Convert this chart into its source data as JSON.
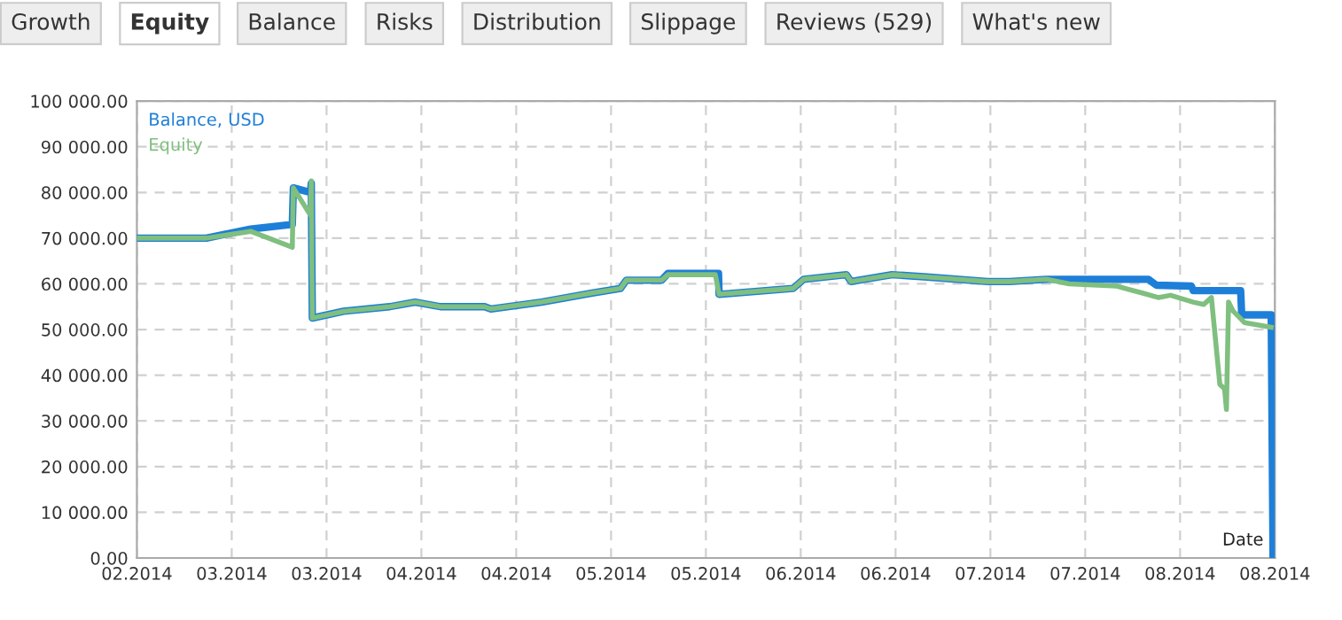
{
  "chart_data": {
    "type": "line",
    "xlabel": "Date",
    "annotations": [
      "Growth",
      "Equity",
      "Balance",
      "Risks",
      "Distribution",
      "Slippage",
      "Reviews (529)",
      "What's new"
    ],
    "xlim": [
      "2014-02-20",
      "2014-08-19"
    ],
    "ylim": [
      0,
      100000
    ],
    "xticks": [
      {
        "value": "2014-02-20",
        "label": "02.2014"
      },
      {
        "value": "2014-03-07",
        "label": "03.2014"
      },
      {
        "value": "2014-03-22",
        "label": "03.2014"
      },
      {
        "value": "2014-04-06",
        "label": "04.2014"
      },
      {
        "value": "2014-04-21",
        "label": "04.2014"
      },
      {
        "value": "2014-05-06",
        "label": "05.2014"
      },
      {
        "value": "2014-05-21",
        "label": "05.2014"
      },
      {
        "value": "2014-06-05",
        "label": "06.2014"
      },
      {
        "value": "2014-06-20",
        "label": "06.2014"
      },
      {
        "value": "2014-07-05",
        "label": "07.2014"
      },
      {
        "value": "2014-07-20",
        "label": "07.2014"
      },
      {
        "value": "2014-08-04",
        "label": "08.2014"
      },
      {
        "value": "2014-08-19",
        "label": "08.2014"
      }
    ],
    "yticks": [
      {
        "value": 0,
        "label": "0.00"
      },
      {
        "value": 10000,
        "label": "10 000.00"
      },
      {
        "value": 20000,
        "label": "20 000.00"
      },
      {
        "value": 30000,
        "label": "30 000.00"
      },
      {
        "value": 40000,
        "label": "40 000.00"
      },
      {
        "value": 50000,
        "label": "50 000.00"
      },
      {
        "value": 60000,
        "label": "60 000.00"
      },
      {
        "value": 70000,
        "label": "70 000.00"
      },
      {
        "value": 80000,
        "label": "80 000.00"
      },
      {
        "value": 90000,
        "label": "90 000.00"
      },
      {
        "value": 100000,
        "label": "100 000.00"
      }
    ],
    "grid": true,
    "legend": "top left",
    "marker": "none",
    "line_style": "solid",
    "series": [
      {
        "name": "Balance, USD",
        "color": "#1e7fd8",
        "x": [
          "2014-02-20",
          "2014-03-03",
          "2014-03-10",
          "2014-03-16T14:00",
          "2014-03-16T18:00",
          "2014-03-19T11:00",
          "2014-03-19T14:00",
          "2014-03-19T18:00",
          "2014-03-24T17:00",
          "2014-04-01",
          "2014-04-05",
          "2014-04-09",
          "2014-04-16",
          "2014-04-17",
          "2014-04-25",
          "2014-05-03",
          "2014-05-07T12:00",
          "2014-05-08T10:00",
          "2014-05-14",
          "2014-05-15",
          "2014-05-23",
          "2014-05-23T02:00",
          "2014-06-03T19:00",
          "2014-06-05T11:00",
          "2014-06-12T05:00",
          "2014-06-12T23:00",
          "2014-06-19T10:00",
          "2014-06-25",
          "2014-07-04T13:00",
          "2014-07-08",
          "2014-07-13T20:00",
          "2014-07-30",
          "2014-07-31T06:00",
          "2014-08-05T19:00",
          "2014-08-06T02:00",
          "2014-08-13T14:00",
          "2014-08-13T18:00",
          "2014-08-18T10:00",
          "2014-08-18T17:00"
        ],
        "values": [
          70000,
          70000,
          72000,
          73000,
          81000,
          80000,
          82000,
          52500,
          54000,
          55000,
          56000,
          55000,
          55000,
          54500,
          56000,
          58000,
          59000,
          60800,
          60800,
          62300,
          62300,
          57700,
          59000,
          61000,
          62000,
          60500,
          62000,
          61500,
          60500,
          60500,
          61000,
          61000,
          59700,
          59500,
          58500,
          58500,
          53200,
          53200,
          0
        ]
      },
      {
        "name": "Equity",
        "color": "#7fbf7f",
        "x": [
          "2014-02-20",
          "2014-03-03",
          "2014-03-10",
          "2014-03-16T14:00",
          "2014-03-16T18:00",
          "2014-03-19T11:00",
          "2014-03-19T14:00",
          "2014-03-19T18:00",
          "2014-03-24T17:00",
          "2014-04-01",
          "2014-04-05",
          "2014-04-09",
          "2014-04-16",
          "2014-04-17",
          "2014-04-25",
          "2014-05-03",
          "2014-05-07T12:00",
          "2014-05-08T10:00",
          "2014-05-14",
          "2014-05-15",
          "2014-05-22T12:00",
          "2014-05-23T02:00",
          "2014-06-03T19:00",
          "2014-06-05T11:00",
          "2014-06-12T05:00",
          "2014-06-12T23:00",
          "2014-06-19T10:00",
          "2014-06-25",
          "2014-07-04T13:00",
          "2014-07-08",
          "2014-07-13T20:00",
          "2014-07-17T11:00",
          "2014-07-25",
          "2014-07-29",
          "2014-07-31T13:00",
          "2014-08-02T12:00",
          "2014-08-06T02:00",
          "2014-08-07T18:00",
          "2014-08-08T23:00",
          "2014-08-10T07:00",
          "2014-08-11T01:00",
          "2014-08-11T08:00",
          "2014-08-11T16:00",
          "2014-08-12T10:00",
          "2014-08-14T05:00",
          "2014-08-18T10:00"
        ],
        "values": [
          70000,
          70000,
          71500,
          68000,
          81000,
          75000,
          82500,
          52500,
          54000,
          55000,
          56000,
          55000,
          55000,
          54500,
          56000,
          58000,
          59000,
          60800,
          60800,
          62000,
          62000,
          57700,
          59000,
          61000,
          62000,
          60500,
          62000,
          61500,
          60500,
          60500,
          61000,
          60000,
          59500,
          58000,
          57000,
          57500,
          56000,
          55500,
          57000,
          38000,
          37000,
          32500,
          56000,
          54000,
          51500,
          50500
        ]
      }
    ]
  }
}
